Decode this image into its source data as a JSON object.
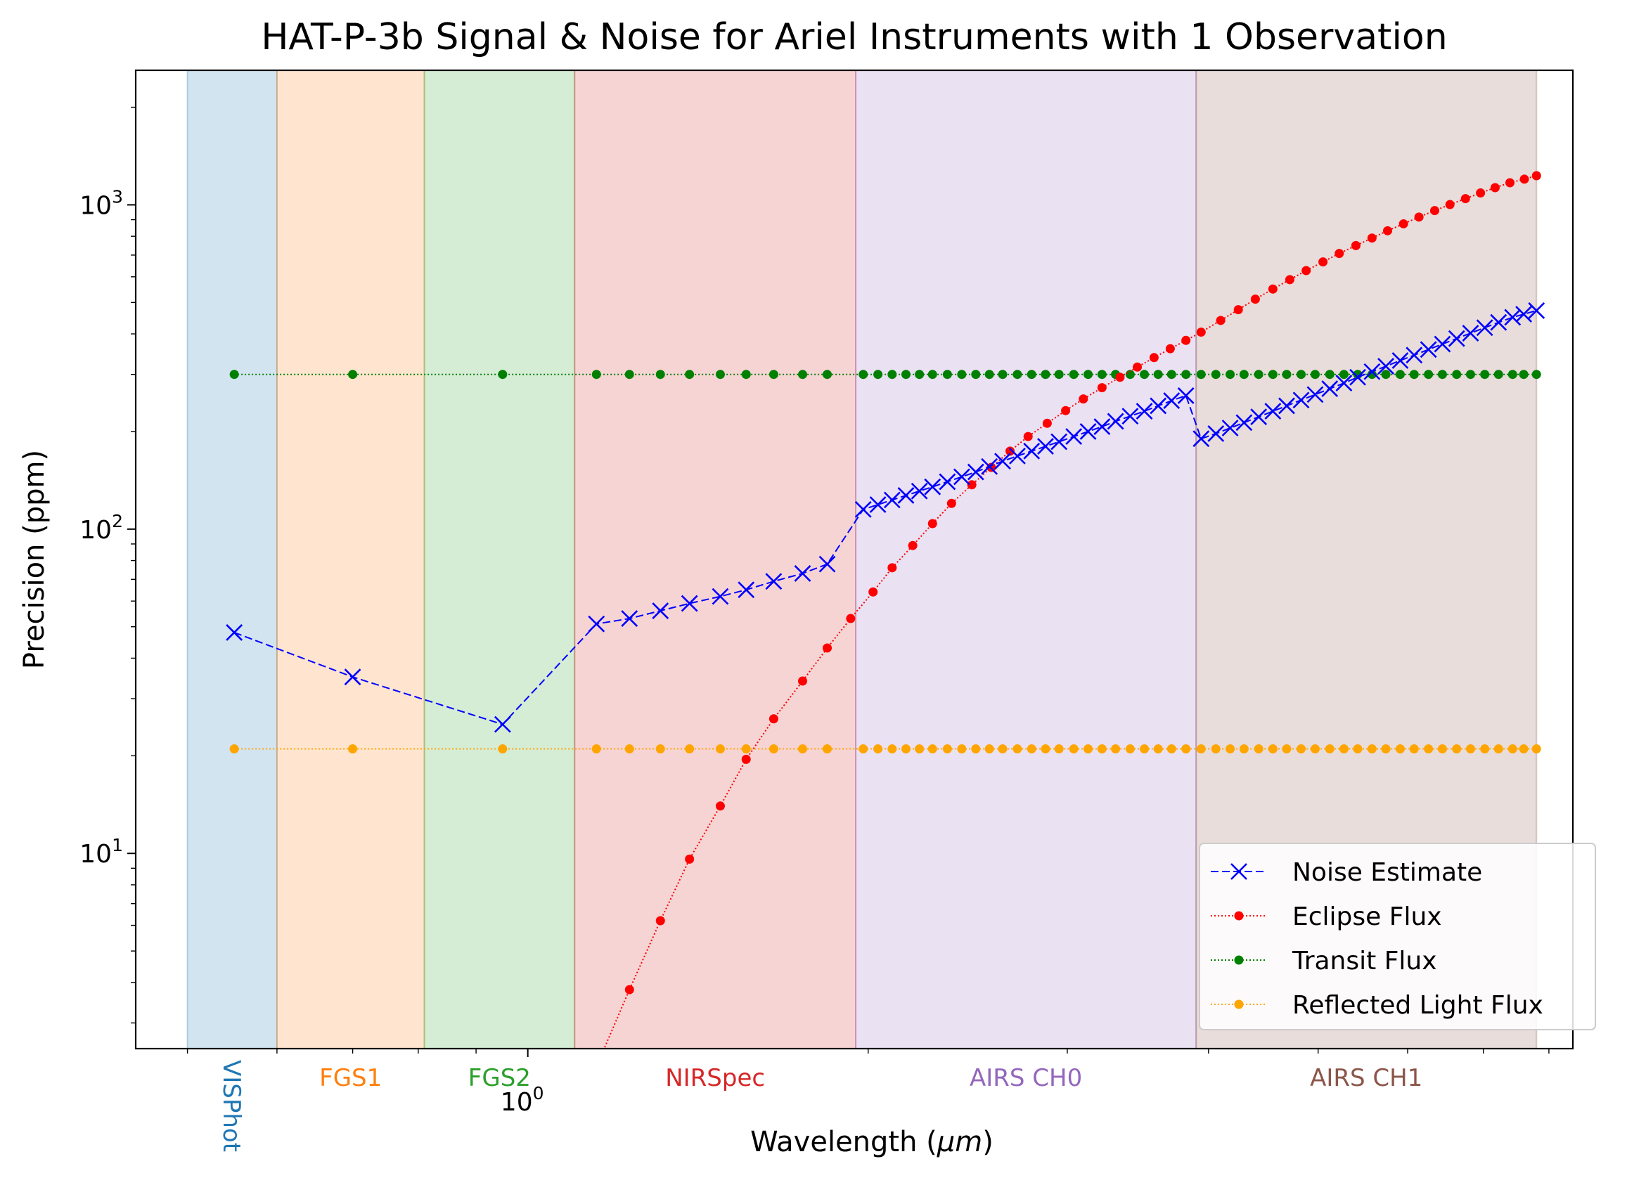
{
  "chart_data": {
    "type": "line",
    "title": "HAT-P-3b Signal & Noise for Ariel Instruments with 1 Observation",
    "xlabel": "Wavelength (μm)",
    "ylabel": "Precision (ppm)",
    "x_scale": "log",
    "y_scale": "log",
    "xlim": [
      0.45,
      8.4
    ],
    "ylim": [
      2.5,
      2600
    ],
    "x_tick_labels": [
      {
        "value": 1.0,
        "label": "10",
        "exp": "0"
      }
    ],
    "y_tick_labels": [
      {
        "value": 10,
        "label": "10",
        "exp": "1"
      },
      {
        "value": 100,
        "label": "10",
        "exp": "2"
      },
      {
        "value": 1000,
        "label": "10",
        "exp": "3"
      }
    ],
    "grid": false,
    "legend_position": "lower-right",
    "bands": [
      {
        "name": "VISPhot",
        "range": [
          0.5,
          0.6
        ],
        "color": "#1f77b4",
        "label_rotated": true
      },
      {
        "name": "FGS1",
        "range": [
          0.6,
          0.81
        ],
        "color": "#ff7f0e",
        "label_rotated": false
      },
      {
        "name": "FGS2",
        "range": [
          0.81,
          1.1
        ],
        "color": "#2ca02c",
        "label_rotated": false
      },
      {
        "name": "NIRSpec",
        "range": [
          1.1,
          1.95
        ],
        "color": "#d62728",
        "label_rotated": false
      },
      {
        "name": "AIRS CH0",
        "range": [
          1.95,
          3.9
        ],
        "color": "#9467bd",
        "label_rotated": false
      },
      {
        "name": "AIRS CH1",
        "range": [
          3.9,
          7.8
        ],
        "color": "#8c564b",
        "label_rotated": false
      }
    ],
    "series": [
      {
        "name": "Noise Estimate",
        "color": "#0000ff",
        "marker": "x",
        "line": "dashed",
        "x": [
          0.55,
          0.7,
          0.95,
          1.15,
          1.23,
          1.31,
          1.39,
          1.48,
          1.56,
          1.65,
          1.75,
          1.84,
          1.98,
          2.04,
          2.1,
          2.16,
          2.22,
          2.28,
          2.35,
          2.42,
          2.49,
          2.56,
          2.63,
          2.71,
          2.79,
          2.87,
          2.95,
          3.04,
          3.13,
          3.22,
          3.31,
          3.41,
          3.51,
          3.61,
          3.71,
          3.82,
          3.94,
          4.06,
          4.18,
          4.3,
          4.43,
          4.56,
          4.69,
          4.83,
          4.97,
          5.12,
          5.27,
          5.42,
          5.58,
          5.74,
          5.91,
          6.08,
          6.26,
          6.44,
          6.63,
          6.82,
          7.02,
          7.22,
          7.43,
          7.6,
          7.8
        ],
        "y": [
          48,
          35,
          25,
          51,
          53,
          56,
          59,
          62,
          65,
          69,
          73,
          78,
          115,
          119,
          123,
          127,
          131,
          135,
          140,
          145,
          150,
          156,
          162,
          168,
          174,
          180,
          186,
          193,
          200,
          207,
          215,
          223,
          231,
          240,
          249,
          258,
          190,
          197,
          205,
          213,
          222,
          231,
          240,
          250,
          260,
          271,
          282,
          294,
          306,
          318,
          331,
          344,
          358,
          372,
          387,
          402,
          418,
          434,
          450,
          460,
          472
        ]
      },
      {
        "name": "Eclipse Flux",
        "color": "#ff0000",
        "marker": "o",
        "line": "dotted",
        "x": [
          1.15,
          1.23,
          1.31,
          1.39,
          1.48,
          1.56,
          1.65,
          1.75,
          1.84,
          1.93,
          2.02,
          2.1,
          2.19,
          2.28,
          2.37,
          2.47,
          2.57,
          2.67,
          2.77,
          2.88,
          2.99,
          3.1,
          3.22,
          3.34,
          3.46,
          3.58,
          3.7,
          3.82,
          3.94,
          4.1,
          4.25,
          4.4,
          4.56,
          4.72,
          4.88,
          5.05,
          5.22,
          5.4,
          5.58,
          5.76,
          5.95,
          6.14,
          6.34,
          6.54,
          6.75,
          6.96,
          7.17,
          7.39,
          7.61,
          7.8
        ],
        "y": [
          2.2,
          3.8,
          6.2,
          9.6,
          14,
          19.5,
          26,
          34,
          43,
          53,
          64,
          76,
          89,
          104,
          120,
          137,
          155,
          174,
          193,
          212,
          232,
          252,
          273,
          294,
          316,
          338,
          360,
          382,
          405,
          440,
          475,
          512,
          550,
          588,
          627,
          667,
          708,
          749,
          790,
          832,
          874,
          917,
          960,
          1002,
          1045,
          1088,
          1130,
          1170,
          1200,
          1230
        ]
      },
      {
        "name": "Transit Flux",
        "color": "#008000",
        "marker": "o",
        "line": "dotted",
        "constant": 300
      },
      {
        "name": "Reflected Light Flux",
        "color": "#ffa500",
        "marker": "o",
        "line": "dotted",
        "constant": 21
      }
    ]
  }
}
